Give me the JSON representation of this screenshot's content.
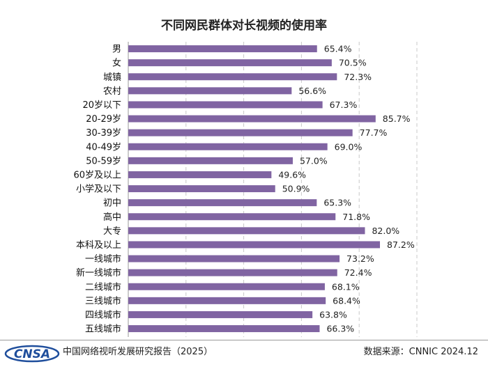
{
  "chart_data": {
    "type": "bar",
    "orientation": "horizontal",
    "title": "不同网民群体对长视频的使用率",
    "categories": [
      "男",
      "女",
      "城镇",
      "农村",
      "20岁以下",
      "20-29岁",
      "30-39岁",
      "40-49岁",
      "50-59岁",
      "60岁及以上",
      "小学及以下",
      "初中",
      "高中",
      "大专",
      "本科及以上",
      "一线城市",
      "新一线城市",
      "二线城市",
      "三线城市",
      "四线城市",
      "五线城市"
    ],
    "values": [
      65.4,
      70.5,
      72.3,
      56.6,
      67.3,
      85.7,
      77.7,
      69.0,
      57.0,
      49.6,
      50.9,
      65.3,
      71.8,
      82.0,
      87.2,
      73.2,
      72.4,
      68.1,
      68.4,
      63.8,
      66.3
    ],
    "value_labels": [
      "65.4%",
      "70.5%",
      "72.3%",
      "56.6%",
      "67.3%",
      "85.7%",
      "77.7%",
      "69.0%",
      "57.0%",
      "49.6%",
      "50.9%",
      "65.3%",
      "71.8%",
      "82.0%",
      "87.2%",
      "73.2%",
      "72.4%",
      "68.1%",
      "68.4%",
      "63.8%",
      "66.3%"
    ],
    "xlim": [
      0,
      100
    ],
    "grid": true,
    "bar_color": "#8064a2"
  },
  "footer": {
    "logo_text": "CNSA",
    "report_title": "中国网络视听发展研究报告（2025）",
    "source": "数据来源：CNNIC 2024.12"
  }
}
